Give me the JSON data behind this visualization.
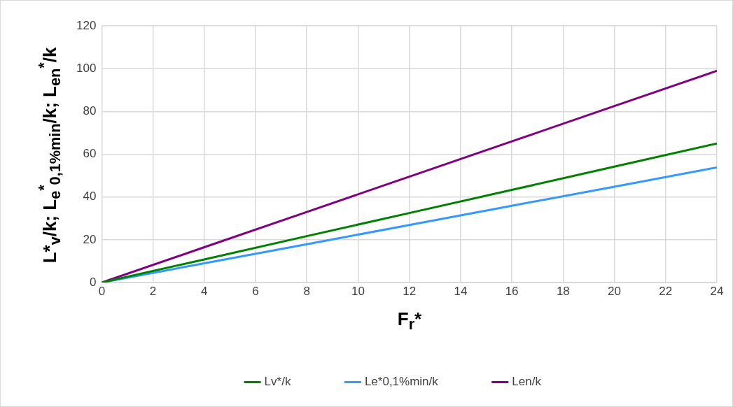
{
  "chart_data": {
    "type": "line",
    "xlabel": "F$_{r}$*",
    "ylabel": "L*$_{v}$/k; L$_{e}$$^{*}$$_{0,1%min}$/k; L$_{en}$$^{*}$/k",
    "x": [
      0,
      4,
      8,
      12,
      16,
      20,
      24
    ],
    "series": [
      {
        "name": "Lv*/k",
        "color": "#008000",
        "values": [
          0,
          10.8,
          21.7,
          32.5,
          43.3,
          54.2,
          65
        ]
      },
      {
        "name": "Le*0,1%min/k",
        "color": "#3399ff",
        "values": [
          0,
          9,
          17.9,
          26.9,
          35.9,
          44.8,
          53.8
        ]
      },
      {
        "name": "Len/k",
        "color": "#800080",
        "values": [
          0,
          16.5,
          33,
          49.5,
          66,
          82.5,
          99
        ]
      }
    ],
    "xlim": [
      0,
      24
    ],
    "xticks": [
      0,
      2,
      4,
      6,
      8,
      10,
      12,
      14,
      16,
      18,
      20,
      22,
      24
    ],
    "ylim": [
      0,
      120
    ],
    "yticks": [
      0,
      20,
      40,
      60,
      80,
      100,
      120
    ],
    "grid": true,
    "legend": "bottom",
    "marker": "none",
    "line_style": "solid"
  }
}
